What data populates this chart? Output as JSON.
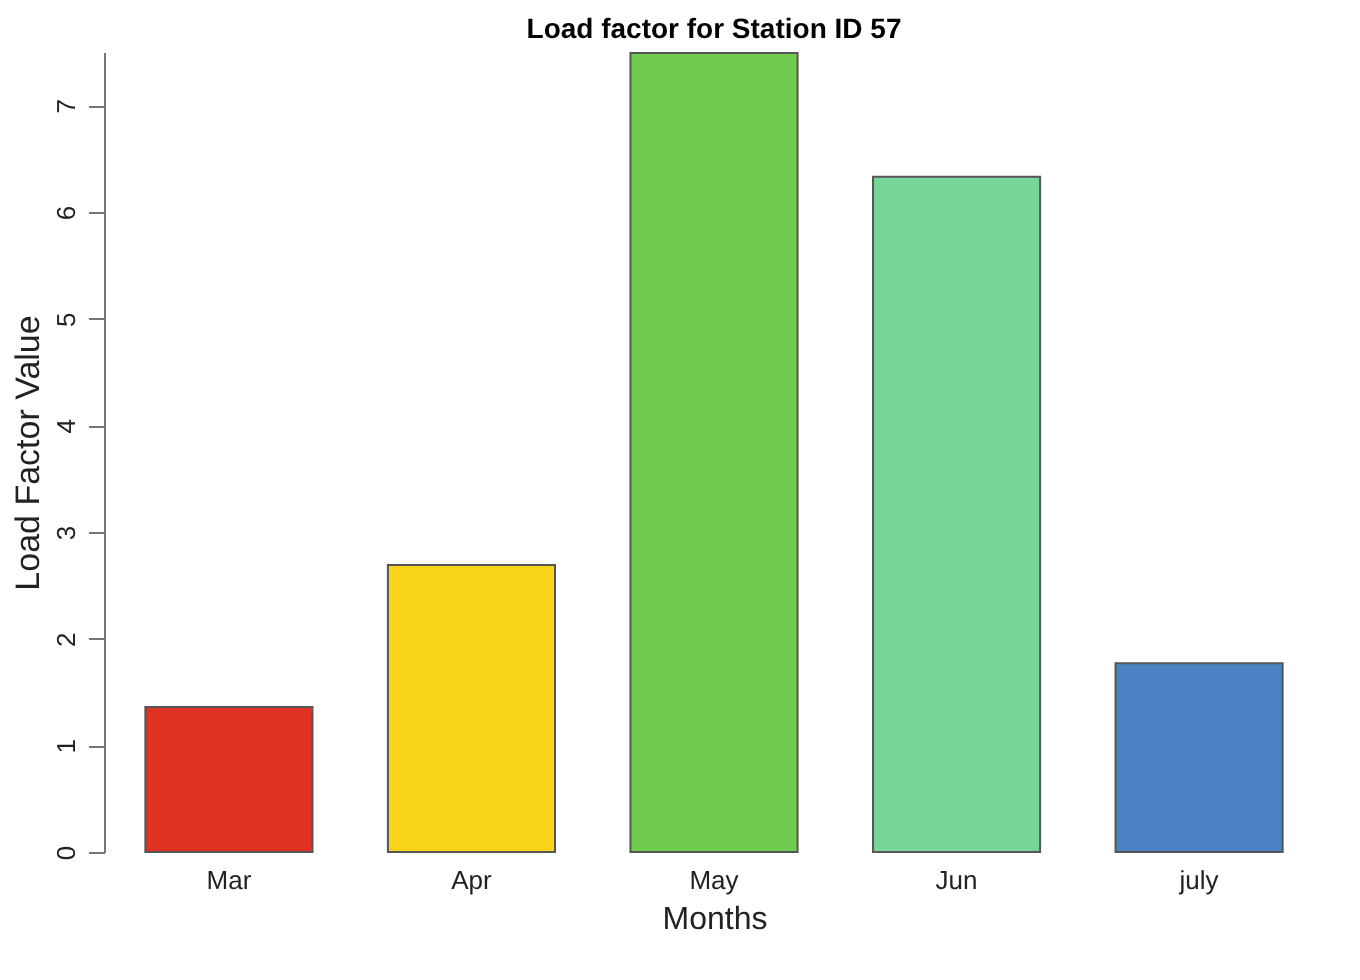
{
  "chart_data": {
    "type": "bar",
    "title": "Load factor for Station ID 57",
    "xlabel": "Months",
    "ylabel": "Load Factor Value",
    "categories": [
      "Mar",
      "Apr",
      "May",
      "Jun",
      "july"
    ],
    "values": [
      1.36,
      2.69,
      7.49,
      6.33,
      1.77
    ],
    "colors": [
      "#e03222",
      "#f8d417",
      "#70cc4e",
      "#76d69a",
      "#4a82c4"
    ],
    "ylim": [
      0,
      7.5
    ],
    "yticks": [
      0,
      1,
      2,
      3,
      4,
      5,
      6,
      7
    ],
    "grid": false
  }
}
